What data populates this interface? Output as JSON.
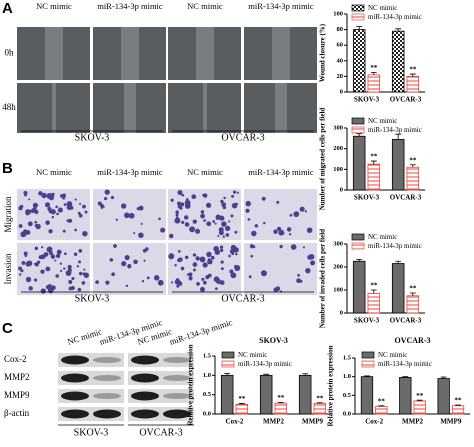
{
  "panels": {
    "A": {
      "label": "A",
      "columns": [
        "NC mimic",
        "miR-134-3p mimic",
        "NC mimic",
        "miR-134-3p mimic"
      ],
      "rows": [
        "0h",
        "48h"
      ],
      "groups": [
        "SKOV-3",
        "OVCAR-3"
      ]
    },
    "B": {
      "label": "B",
      "columns": [
        "NC mimic",
        "miR-134-3p mimic",
        "NC mimic",
        "miR-134-3p mimic"
      ],
      "rows": [
        "Migration",
        "Invasion"
      ],
      "groups": [
        "SKOV-3",
        "OVCAR-3"
      ]
    },
    "C": {
      "label": "C",
      "columns": [
        "NC mimic",
        "miR-134-3p mimic",
        "NC mimic",
        "miR-134-3p mimic"
      ],
      "rows": [
        "Cox-2",
        "MMP2",
        "MMP9",
        "β-actin"
      ],
      "groups": [
        "SKOV-3",
        "OVCAR-3"
      ]
    }
  },
  "chart_data": [
    {
      "type": "bar",
      "y_label": "Wound closure (%)",
      "categories": [
        "SKOV-3",
        "OVCAR-3"
      ],
      "series": [
        {
          "name": "NC mimic",
          "color": "#222222",
          "hatch": "checker",
          "values": [
            80,
            78
          ],
          "errors": [
            4,
            3
          ]
        },
        {
          "name": "miR-134-3p mimic",
          "color": "#e8453c",
          "hatch": "stripes",
          "values": [
            22,
            20
          ],
          "errors": [
            3,
            3
          ],
          "annotations": [
            "**",
            "**"
          ]
        }
      ],
      "ylim": [
        0,
        100
      ],
      "yticks": [
        0,
        20,
        40,
        60,
        80,
        100
      ],
      "legend": "upper right"
    },
    {
      "type": "bar",
      "y_label": "Number of migrated cells per field",
      "categories": [
        "SKOV-3",
        "OVCAR-3"
      ],
      "series": [
        {
          "name": "NC mimic",
          "color": "#6b6b6b",
          "values": [
            260,
            245
          ],
          "errors": [
            12,
            25
          ]
        },
        {
          "name": "miR-134-3p mimic",
          "color": "#e8453c",
          "hatch": "stripes",
          "values": [
            125,
            110
          ],
          "errors": [
            15,
            12
          ],
          "annotations": [
            "**",
            "**"
          ]
        }
      ],
      "ylim": [
        0,
        300
      ],
      "yticks": [
        0,
        100,
        200,
        300
      ],
      "legend": "upper right"
    },
    {
      "type": "bar",
      "y_label": "Number of invaded cells per field",
      "categories": [
        "SKOV-3",
        "OVCAR-3"
      ],
      "series": [
        {
          "name": "NC mimic",
          "color": "#6b6b6b",
          "values": [
            225,
            215
          ],
          "errors": [
            8,
            10
          ]
        },
        {
          "name": "miR-134-3p mimic",
          "color": "#e8453c",
          "hatch": "stripes",
          "values": [
            85,
            75
          ],
          "errors": [
            15,
            12
          ],
          "annotations": [
            "**",
            "**"
          ]
        }
      ],
      "ylim": [
        0,
        300
      ],
      "yticks": [
        0,
        100,
        200,
        300
      ],
      "legend": "upper right"
    },
    {
      "type": "bar",
      "title": "SKOV-3",
      "y_label": "Relative protein expression",
      "categories": [
        "Cox-2",
        "MMP2",
        "MMP9"
      ],
      "series": [
        {
          "name": "NC mimic",
          "color": "#6b6b6b",
          "values": [
            1.0,
            1.0,
            1.0
          ],
          "errors": [
            0.05,
            0.03,
            0.04
          ]
        },
        {
          "name": "miR-134-3p mimic",
          "color": "#e8453c",
          "hatch": "stripes",
          "values": [
            0.25,
            0.28,
            0.27
          ],
          "errors": [
            0.02,
            0.02,
            0.02
          ],
          "annotations": [
            "**",
            "**",
            "**"
          ]
        }
      ],
      "ylim": [
        0,
        1.5
      ],
      "yticks": [
        {
          "value": 0,
          "label": "0.0"
        },
        {
          "value": 0.5,
          "label": "0.5"
        },
        {
          "value": 1,
          "label": "1.0"
        },
        {
          "value": 1.5,
          "label": "1.5"
        }
      ],
      "legend": "upper left"
    },
    {
      "type": "bar",
      "title": "OVCAR-3",
      "y_label": "Relative protein expression",
      "categories": [
        "Cox-2",
        "MMP2",
        "MMP9"
      ],
      "series": [
        {
          "name": "NC mimic",
          "color": "#6b6b6b",
          "values": [
            1.0,
            0.98,
            0.95
          ],
          "errors": [
            0.02,
            0.02,
            0.04
          ]
        },
        {
          "name": "miR-134-3p mimic",
          "color": "#e8453c",
          "hatch": "stripes",
          "values": [
            0.2,
            0.35,
            0.22
          ],
          "errors": [
            0.02,
            0.02,
            0.02
          ],
          "annotations": [
            "**",
            "**",
            "**"
          ]
        }
      ],
      "ylim": [
        0,
        1.5
      ],
      "yticks": [
        {
          "value": 0,
          "label": "0.0"
        },
        {
          "value": 0.5,
          "label": "0.5"
        },
        {
          "value": 1,
          "label": "1.0"
        },
        {
          "value": 1.5,
          "label": "1.5"
        }
      ],
      "legend": "upper left"
    }
  ]
}
